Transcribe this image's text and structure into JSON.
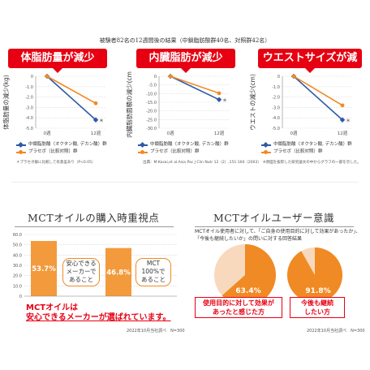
{
  "header_note": "被験者82名の12週間後の結果（中鎖脂肪酸群40名、対照群42名）",
  "panels": [
    {
      "badge": "体脂肪量が減少",
      "ylabel": "体脂肪量の減少(kg)"
    },
    {
      "badge": "内臓脂肪が減少",
      "ylabel": "内臓脂肪面積の減少(cm²)"
    },
    {
      "badge": "ウエストサイズが減少",
      "ylabel": "ウエストの減少(cm)"
    }
  ],
  "legend": {
    "mct": "中鎖脂肪酸（オクタン酸, デカン酸）群",
    "placebo": "プラセボ（比較対照）群"
  },
  "footnotes": {
    "significance": "＊プラセボ群に比較して有意差あり（P<0.05）",
    "reference": "出典：M.Kasai,et al.Asia Pac J Clin Nutr 12（2）,151-160（2003）",
    "figure": "※原図を抜粋した研究論文の中からグラフの一部を示した。"
  },
  "purchase": {
    "title": "MCTオイルの購入時重視点",
    "bubble1": [
      "安心できる",
      "メーカーで",
      "あること"
    ],
    "bubble2": [
      "MCT",
      "100%で",
      "あること"
    ],
    "caption_line1": "MCTオイルは",
    "caption_line2": "安心できるメーカーが選ばれています。",
    "source": "2022年10月当社調べ　N=300"
  },
  "awareness": {
    "title": "MCTオイルユーザー意識",
    "text1": "MCTオイル使用者に対して、「ご自身の使用目的に対して効果があったか」、",
    "text2": "「今後も継続したいか」の問いに対する回答結果",
    "box1": [
      "使用目的に対して効果が",
      "あったと感じた方"
    ],
    "box2": [
      "今後も継続",
      "したい方"
    ],
    "source": "2022年10月当社調べ　N=300"
  },
  "colors": {
    "mct": "#2e5aa6",
    "placebo": "#f08a24",
    "red": "#e60012",
    "bar": "#f39a3c",
    "pie_light": "#f9d9bd"
  },
  "chart_data": [
    {
      "type": "line",
      "title": "体脂肪量が減少",
      "ylabel": "体脂肪量の減少(kg)",
      "categories": [
        "0週",
        "12週"
      ],
      "ylim": [
        -5,
        0
      ],
      "yticks": [
        "0",
        "-1.0",
        "-2.0",
        "-3.0",
        "-4.0",
        "-5.0"
      ],
      "series": [
        {
          "name": "中鎖脂肪酸（オクタン酸, デカン酸）群",
          "values": [
            0,
            -4.2
          ]
        },
        {
          "name": "プラセボ（比較対照）群",
          "values": [
            0,
            -2.6
          ]
        }
      ],
      "annotation": "＊"
    },
    {
      "type": "line",
      "title": "内臓脂肪が減少",
      "ylabel": "内臓脂肪面積の減少(cm²)",
      "categories": [
        "0週",
        "12週"
      ],
      "ylim": [
        -30,
        0
      ],
      "yticks": [
        "0",
        "-5.0",
        "-10.0",
        "-15.0",
        "-20.0",
        "-25.0",
        "-30.0"
      ],
      "series": [
        {
          "name": "中鎖脂肪酸（オクタン酸, デカン酸）群",
          "values": [
            0,
            -13.5
          ]
        },
        {
          "name": "プラセボ（比較対照）群",
          "values": [
            0,
            -9.8
          ]
        }
      ],
      "annotation": "＊"
    },
    {
      "type": "line",
      "title": "ウエストサイズが減少",
      "ylabel": "ウエストの減少(cm)",
      "categories": [
        "0週",
        "12週"
      ],
      "ylim": [
        -5,
        0
      ],
      "yticks": [
        "0",
        "-1.0",
        "-2.0",
        "-3.0",
        "-4.0",
        "-5.0"
      ],
      "series": [
        {
          "name": "中鎖脂肪酸（オクタン酸, デカン酸）群",
          "values": [
            0,
            -4.2
          ]
        },
        {
          "name": "プラセボ（比較対照）群",
          "values": [
            0,
            -2.8
          ]
        }
      ],
      "annotation": "＊"
    },
    {
      "type": "bar",
      "title": "MCTオイルの購入時重視点",
      "categories": [
        "安心できるメーカーであること",
        "MCT100%であること"
      ],
      "values": [
        53.7,
        46.8
      ],
      "value_labels": [
        "53.7%",
        "46.8%"
      ],
      "ylim": [
        0,
        60
      ],
      "yticks": [
        "60.0",
        "50.0",
        "40.0",
        "30.0",
        "20.0",
        "10.0",
        "0"
      ]
    },
    {
      "type": "pie",
      "title": "使用目的に対して効果があったと感じた方",
      "values": [
        63.4,
        36.6
      ],
      "value_label": "63.4%"
    },
    {
      "type": "pie",
      "title": "今後も継続したい方",
      "values": [
        91.8,
        8.2
      ],
      "value_label": "91.8%"
    }
  ]
}
